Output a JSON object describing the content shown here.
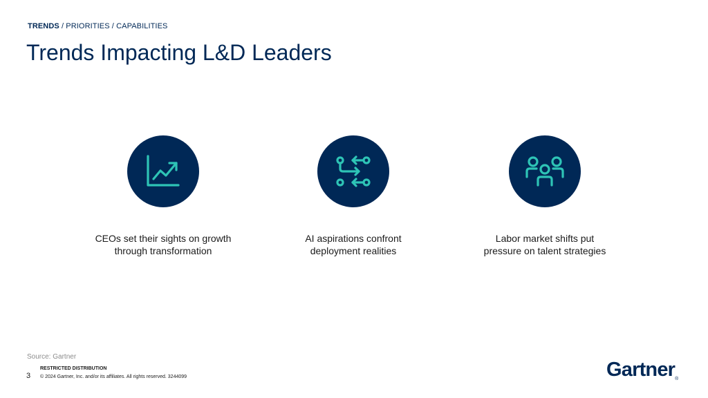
{
  "breadcrumb": {
    "active": "TRENDS",
    "rest": " / PRIORITIES / CAPABILITIES"
  },
  "title": "Trends Impacting L&D Leaders",
  "cards": [
    {
      "icon": "growth-chart-icon",
      "line1": "CEOs set their sights on growth",
      "line2": "through transformation"
    },
    {
      "icon": "ai-flow-icon",
      "line1": "AI aspirations confront",
      "line2": "deployment realities"
    },
    {
      "icon": "people-group-icon",
      "line1": "Labor market shifts put",
      "line2": "pressure on talent strategies"
    }
  ],
  "footer": {
    "source": "Source: Gartner",
    "page": "3",
    "restricted": "RESTRICTED DISTRIBUTION",
    "copyright": "© 2024 Gartner, Inc. and/or its affiliates. All rights reserved. 3244099",
    "logo": "Gartner",
    "logo_mark": "®"
  },
  "colors": {
    "navy": "#002856",
    "teal": "#2ec4b6"
  }
}
